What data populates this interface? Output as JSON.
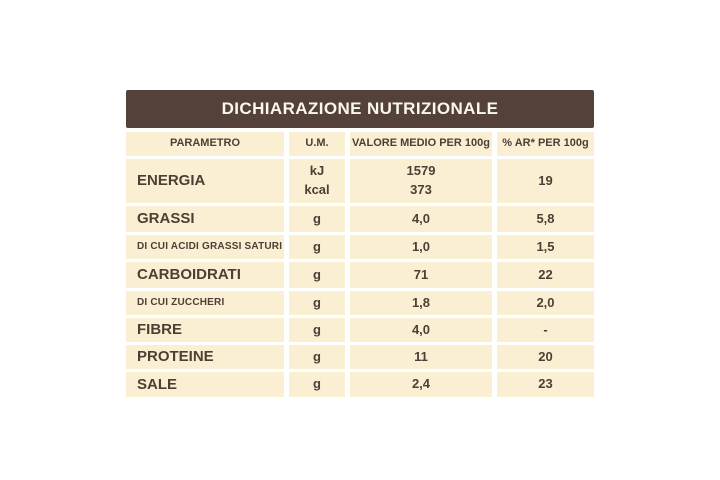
{
  "title": "DICHIARAZIONE NUTRIZIONALE",
  "columns": {
    "parameter": "PARAMETRO",
    "unit": "U.M.",
    "value": "VALORE MEDIO PER 100g",
    "ar": "% AR* PER 100g"
  },
  "rows": [
    {
      "label": "ENERGIA",
      "unit": "kJ\nkcal",
      "value": "1579\n373",
      "ar": "19"
    },
    {
      "label": "GRASSI",
      "unit": "g",
      "value": "4,0",
      "ar": "5,8"
    },
    {
      "label": "DI CUI ACIDI GRASSI SATURI",
      "unit": "g",
      "value": "1,0",
      "ar": "1,5"
    },
    {
      "label": "CARBOIDRATI",
      "unit": "g",
      "value": "71",
      "ar": "22"
    },
    {
      "label": "DI CUI ZUCCHERI",
      "unit": "g",
      "value": "1,8",
      "ar": "2,0"
    },
    {
      "label": "FIBRE",
      "unit": "g",
      "value": "4,0",
      "ar": "-"
    },
    {
      "label": "PROTEINE",
      "unit": "g",
      "value": "11",
      "ar": "20"
    },
    {
      "label": "SALE",
      "unit": "g",
      "value": "2,4",
      "ar": "23"
    }
  ],
  "colors": {
    "header_bg": "#544139",
    "cell_bg": "#faefd2",
    "text": "#4f3e35",
    "header_text": "#faf7ef",
    "page_bg": "#ffffff"
  }
}
